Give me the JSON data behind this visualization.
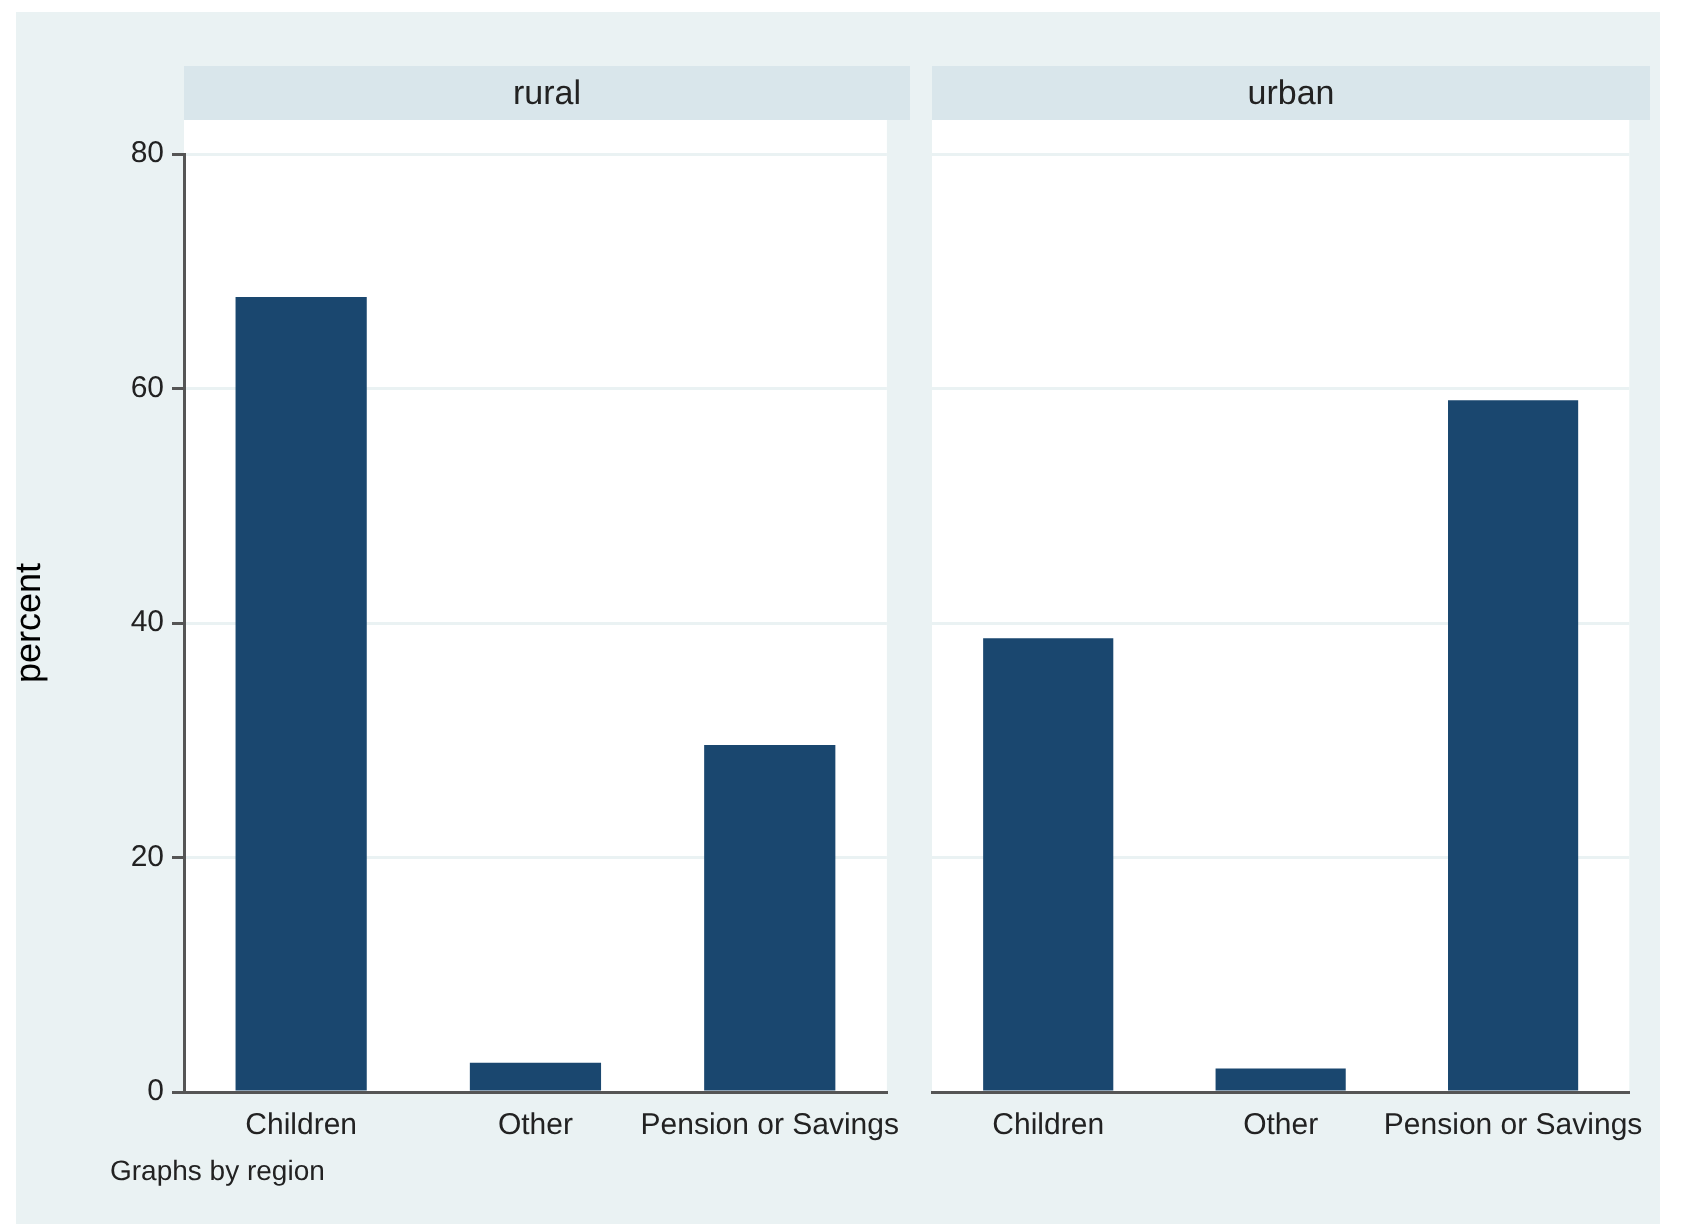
{
  "chart_data": [
    {
      "type": "bar",
      "title": "rural",
      "ylabel": "percent",
      "categories": [
        "Children",
        "Other",
        "Pension or Savings"
      ],
      "values": [
        67.8,
        2.5,
        29.6
      ],
      "color": "#1a476f",
      "ylim": [
        0,
        80
      ],
      "yticks": [
        0,
        20,
        40,
        60,
        80
      ],
      "grid": "y",
      "legend": false,
      "annotations": [
        "Graphs by region"
      ]
    },
    {
      "type": "bar",
      "title": "urban",
      "categories": [
        "Children",
        "Other",
        "Pension or Savings"
      ],
      "values": [
        38.7,
        2.0,
        59.0
      ],
      "color": "#1a476f",
      "ylim": [
        0,
        80
      ],
      "yticks": [
        0,
        20,
        40,
        60,
        80
      ],
      "grid": "y",
      "legend": false,
      "tick_labels": "x"
    }
  ]
}
